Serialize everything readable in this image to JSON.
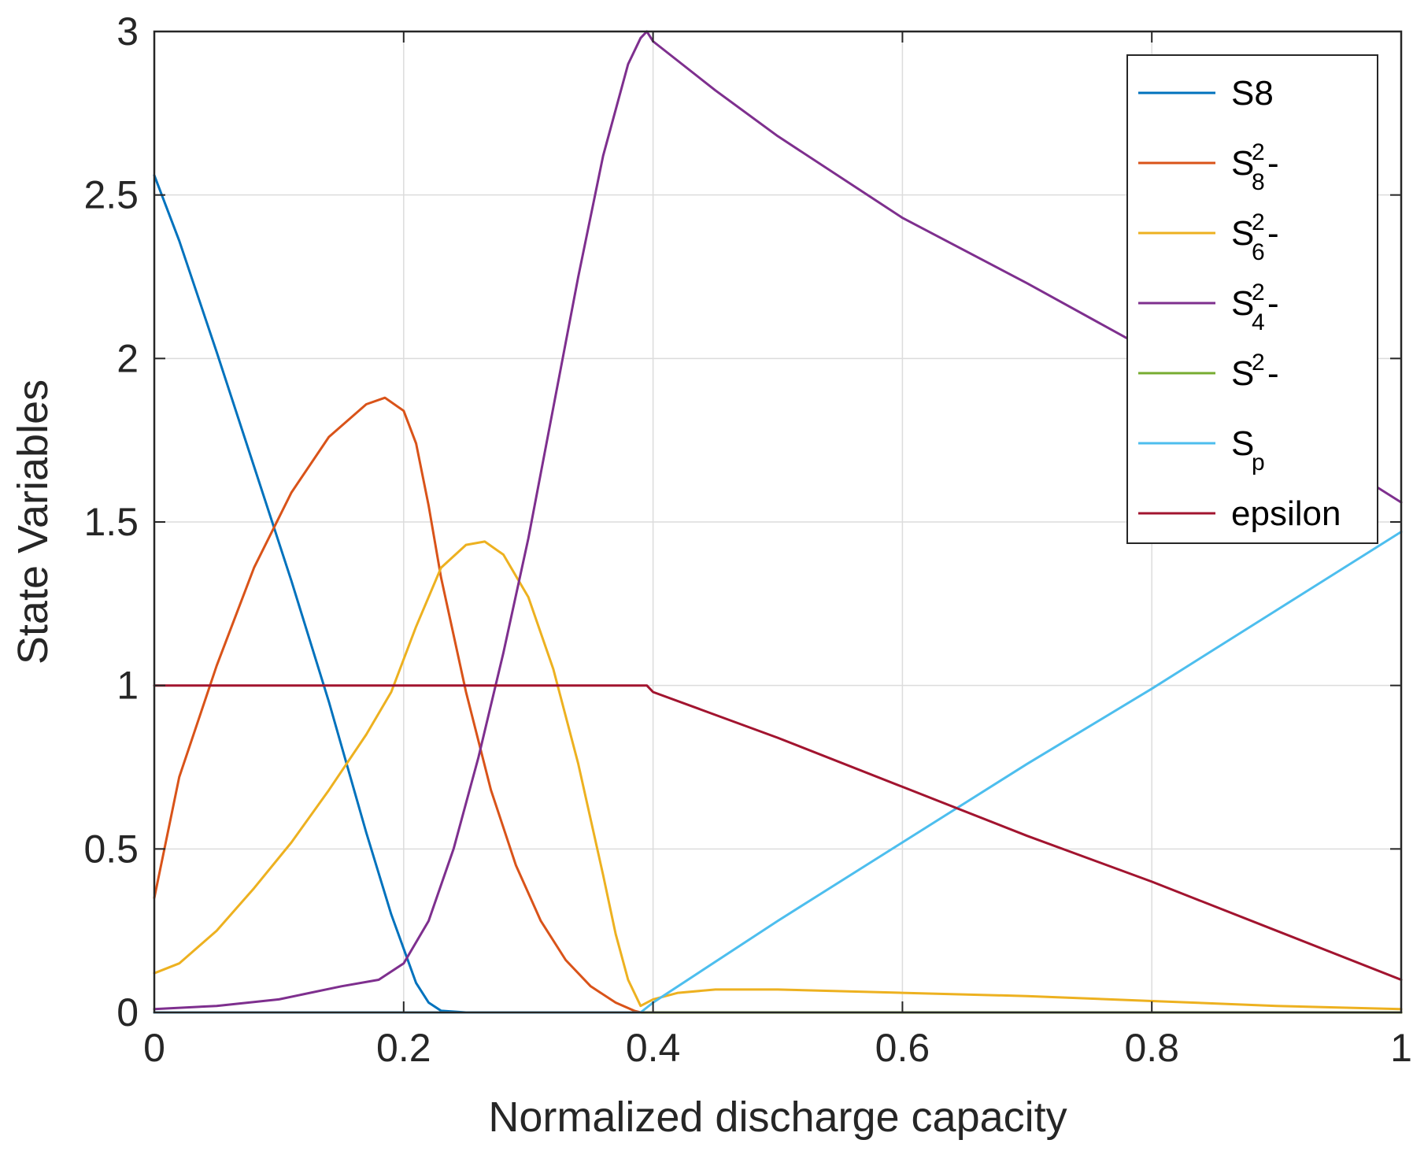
{
  "chart_data": {
    "type": "line",
    "title": "",
    "xlabel": "Normalized discharge capacity",
    "ylabel": "State Variables",
    "xlim": [
      0,
      1
    ],
    "ylim": [
      0,
      3
    ],
    "grid": true,
    "legend_position": "top-right",
    "x_ticks": [
      0,
      0.2,
      0.4,
      0.6,
      0.8,
      1
    ],
    "x_tick_labels": [
      "0",
      "0.2",
      "0.4",
      "0.6",
      "0.8",
      "1"
    ],
    "y_ticks": [
      0,
      0.5,
      1,
      1.5,
      2,
      2.5,
      3
    ],
    "y_tick_labels": [
      "0",
      "0.5",
      "1",
      "1.5",
      "2",
      "2.5",
      "3"
    ],
    "series": [
      {
        "name": "S8",
        "legend": {
          "base": "S8",
          "sup": "",
          "sub": "",
          "suffix": ""
        },
        "color": "#0072BD",
        "x": [
          0,
          0.02,
          0.05,
          0.08,
          0.11,
          0.14,
          0.17,
          0.19,
          0.21,
          0.22,
          0.23,
          0.25,
          0.3,
          0.4,
          0.6,
          0.8,
          1.0
        ],
        "y": [
          2.56,
          2.36,
          2.02,
          1.67,
          1.32,
          0.95,
          0.55,
          0.3,
          0.09,
          0.03,
          0.005,
          0.0,
          0.0,
          0.0,
          0.0,
          0.0,
          0.0
        ]
      },
      {
        "name": "S8 2-",
        "legend": {
          "base": "S",
          "sup": "2",
          "sub": "8",
          "suffix": "-"
        },
        "color": "#D95319",
        "x": [
          0,
          0.02,
          0.05,
          0.08,
          0.11,
          0.14,
          0.17,
          0.185,
          0.2,
          0.21,
          0.22,
          0.23,
          0.25,
          0.27,
          0.29,
          0.31,
          0.33,
          0.35,
          0.37,
          0.385,
          0.39,
          0.4,
          0.6,
          0.8,
          1.0
        ],
        "y": [
          0.35,
          0.72,
          1.06,
          1.36,
          1.59,
          1.76,
          1.86,
          1.88,
          1.84,
          1.74,
          1.55,
          1.33,
          0.98,
          0.68,
          0.45,
          0.28,
          0.16,
          0.08,
          0.03,
          0.005,
          0.0,
          0.0,
          0.0,
          0.0,
          0.0
        ]
      },
      {
        "name": "S6 2-",
        "legend": {
          "base": "S",
          "sup": "2",
          "sub": "6",
          "suffix": "-"
        },
        "color": "#EDB120",
        "x": [
          0,
          0.02,
          0.05,
          0.08,
          0.11,
          0.14,
          0.17,
          0.19,
          0.21,
          0.23,
          0.25,
          0.265,
          0.28,
          0.3,
          0.32,
          0.34,
          0.36,
          0.37,
          0.38,
          0.39,
          0.4,
          0.42,
          0.45,
          0.5,
          0.6,
          0.7,
          0.8,
          0.9,
          1.0
        ],
        "y": [
          0.12,
          0.15,
          0.25,
          0.38,
          0.52,
          0.68,
          0.85,
          0.98,
          1.18,
          1.36,
          1.43,
          1.44,
          1.4,
          1.27,
          1.05,
          0.76,
          0.42,
          0.24,
          0.1,
          0.02,
          0.04,
          0.06,
          0.07,
          0.07,
          0.06,
          0.05,
          0.035,
          0.02,
          0.01
        ]
      },
      {
        "name": "S4 2-",
        "legend": {
          "base": "S",
          "sup": "2",
          "sub": "4",
          "suffix": "-"
        },
        "color": "#7E2F8E",
        "x": [
          0,
          0.05,
          0.1,
          0.15,
          0.18,
          0.2,
          0.22,
          0.24,
          0.26,
          0.28,
          0.3,
          0.32,
          0.34,
          0.36,
          0.38,
          0.39,
          0.395,
          0.4,
          0.45,
          0.5,
          0.6,
          0.7,
          0.8,
          0.9,
          1.0
        ],
        "y": [
          0.01,
          0.02,
          0.04,
          0.08,
          0.1,
          0.15,
          0.28,
          0.5,
          0.78,
          1.1,
          1.45,
          1.85,
          2.25,
          2.62,
          2.9,
          2.98,
          3.0,
          2.97,
          2.82,
          2.68,
          2.43,
          2.23,
          2.02,
          1.8,
          1.56
        ]
      },
      {
        "name": "S 2-",
        "legend": {
          "base": "S",
          "sup": "2",
          "sub": "",
          "suffix": "-"
        },
        "color": "#77AC30",
        "x": [
          0,
          0.39,
          0.4,
          0.6,
          0.8,
          1.0
        ],
        "y": [
          0.0,
          0.0,
          0.0,
          0.0,
          0.0,
          0.0
        ]
      },
      {
        "name": "Sp",
        "legend": {
          "base": "S",
          "sup": "",
          "sub": "p",
          "suffix": ""
        },
        "color": "#4DBEEE",
        "x": [
          0,
          0.39,
          0.4,
          0.5,
          0.6,
          0.7,
          0.8,
          0.9,
          1.0
        ],
        "y": [
          0.0,
          0.0,
          0.03,
          0.28,
          0.52,
          0.76,
          0.99,
          1.23,
          1.47
        ]
      },
      {
        "name": "epsilon",
        "legend": {
          "base": "epsilon",
          "sup": "",
          "sub": "",
          "suffix": ""
        },
        "color": "#A2142F",
        "x": [
          0,
          0.39,
          0.395,
          0.4,
          0.5,
          0.6,
          0.7,
          0.8,
          0.9,
          1.0
        ],
        "y": [
          1.0,
          1.0,
          1.0,
          0.98,
          0.84,
          0.69,
          0.54,
          0.4,
          0.25,
          0.1
        ]
      }
    ]
  }
}
